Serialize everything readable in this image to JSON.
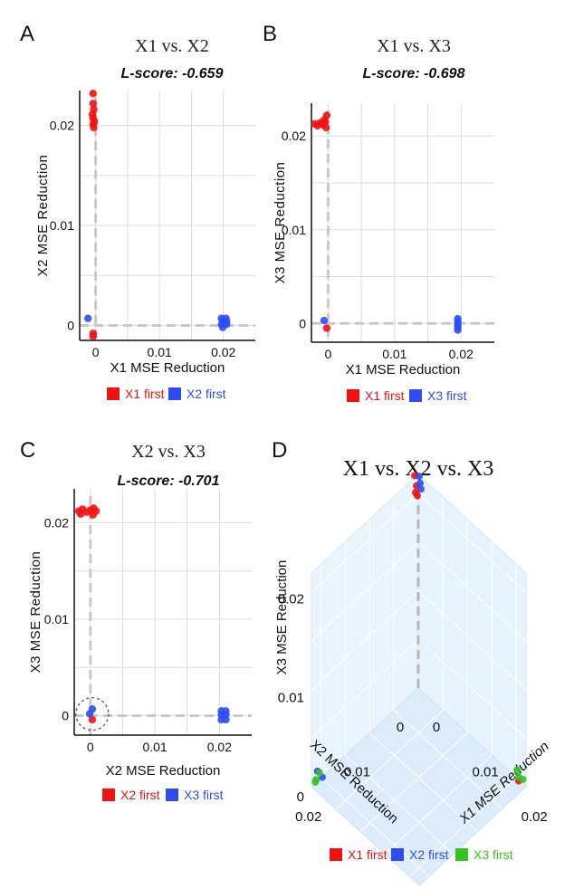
{
  "colors": {
    "red": "#f21111",
    "blue": "#2e4cf2",
    "green": "#34c41d",
    "grid": "#dcdcdc",
    "dash": "#c8c8c8"
  },
  "chart_data": [
    {
      "id": "A",
      "type": "scatter",
      "panel_label": "A",
      "title": "X1 vs. X2",
      "subtitle": "L-score: -0.659",
      "xlabel": "X1 MSE Reduction",
      "ylabel": "X2 MSE Reduction",
      "xlim": [
        -0.0025,
        0.025
      ],
      "ylim": [
        -0.0015,
        0.0235
      ],
      "xticks": [
        {
          "v": 0,
          "label": "0"
        },
        {
          "v": 0.01,
          "label": "0.01"
        },
        {
          "v": 0.02,
          "label": "0.02"
        }
      ],
      "yticks": [
        {
          "v": 0,
          "label": "0"
        },
        {
          "v": 0.01,
          "label": "0.01"
        },
        {
          "v": 0.02,
          "label": "0.02"
        }
      ],
      "legend": [
        {
          "label": "X1 first",
          "color": "red"
        },
        {
          "label": "X2 first",
          "color": "blue"
        }
      ],
      "series": [
        {
          "name": "X1 first",
          "color": "red",
          "points": [
            [
              -0.0004,
              0.0232
            ],
            [
              -0.0004,
              0.0222
            ],
            [
              -0.0003,
              0.0216
            ],
            [
              -0.0005,
              0.0211
            ],
            [
              -0.0004,
              0.0207
            ],
            [
              -0.0002,
              0.0204
            ],
            [
              -0.0004,
              0.0201
            ],
            [
              -0.0003,
              0.0198
            ],
            [
              -0.0004,
              -0.0008
            ],
            [
              -0.0004,
              -0.0011
            ]
          ]
        },
        {
          "name": "X2 first",
          "color": "blue",
          "points": [
            [
              -0.0012,
              0.0007
            ],
            [
              0.0197,
              0.0007
            ],
            [
              0.0199,
              0.0004
            ],
            [
              0.0197,
              0.0001
            ],
            [
              0.0199,
              -0.0002
            ],
            [
              0.0204,
              0.0007
            ],
            [
              0.0205,
              0.0004
            ],
            [
              0.0205,
              0.0001
            ]
          ]
        }
      ]
    },
    {
      "id": "B",
      "type": "scatter",
      "panel_label": "B",
      "title": "X1 vs. X3",
      "subtitle": "L-score: -0.698",
      "xlabel": "X1 MSE Reduction",
      "ylabel": "X3 MSE Reduction",
      "xlim": [
        -0.0025,
        0.025
      ],
      "ylim": [
        -0.002,
        0.0235
      ],
      "xticks": [
        {
          "v": 0,
          "label": "0"
        },
        {
          "v": 0.01,
          "label": "0.01"
        },
        {
          "v": 0.02,
          "label": "0.02"
        }
      ],
      "yticks": [
        {
          "v": 0,
          "label": "0"
        },
        {
          "v": 0.01,
          "label": "0.01"
        },
        {
          "v": 0.02,
          "label": "0.02"
        }
      ],
      "legend": [
        {
          "label": "X1 first",
          "color": "red"
        },
        {
          "label": "X3 first",
          "color": "blue"
        }
      ],
      "series": [
        {
          "name": "X1 first",
          "color": "red",
          "points": [
            [
              -0.002,
              0.0213
            ],
            [
              -0.0016,
              0.0211
            ],
            [
              -0.0012,
              0.0214
            ],
            [
              -0.0008,
              0.0212
            ],
            [
              -0.0004,
              0.0215
            ],
            [
              -0.0002,
              0.0222
            ],
            [
              -0.0003,
              0.0209
            ],
            [
              -0.0006,
              0.0217
            ],
            [
              -0.0002,
              -0.0005
            ]
          ]
        },
        {
          "name": "X3 first",
          "color": "blue",
          "points": [
            [
              -0.0006,
              0.0003
            ],
            [
              0.0195,
              0.0005
            ],
            [
              0.0195,
              0.0002
            ],
            [
              0.0195,
              -0.0001
            ],
            [
              0.0195,
              -0.0004
            ],
            [
              0.0195,
              -0.0007
            ]
          ]
        }
      ]
    },
    {
      "id": "C",
      "type": "scatter",
      "panel_label": "C",
      "title": "X2 vs. X3",
      "subtitle": "L-score: -0.701",
      "xlabel": "X2 MSE Reduction",
      "ylabel": "X3 MSE Reduction",
      "xlim": [
        -0.0025,
        0.025
      ],
      "ylim": [
        -0.002,
        0.0235
      ],
      "xticks": [
        {
          "v": 0,
          "label": "0"
        },
        {
          "v": 0.01,
          "label": "0.01"
        },
        {
          "v": 0.02,
          "label": "0.02"
        }
      ],
      "yticks": [
        {
          "v": 0,
          "label": "0"
        },
        {
          "v": 0.01,
          "label": "0.01"
        },
        {
          "v": 0.02,
          "label": "0.02"
        }
      ],
      "legend": [
        {
          "label": "X2 first",
          "color": "red"
        },
        {
          "label": "X3 first",
          "color": "blue"
        }
      ],
      "annotation": "dashed circle around origin cluster",
      "series": [
        {
          "name": "X2 first",
          "color": "red",
          "points": [
            [
              -0.0018,
              0.0212
            ],
            [
              -0.0012,
              0.0214
            ],
            [
              -0.0006,
              0.0211
            ],
            [
              0.0,
              0.0213
            ],
            [
              0.0005,
              0.0215
            ],
            [
              0.0009,
              0.0212
            ],
            [
              -0.0015,
              0.0209
            ],
            [
              0.0004,
              0.0208
            ],
            [
              0.0003,
              -0.0004
            ]
          ]
        },
        {
          "name": "X3 first",
          "color": "blue",
          "points": [
            [
              -0.0001,
              0.0002
            ],
            [
              0.0003,
              0.0007
            ],
            [
              0.0203,
              0.0005
            ],
            [
              0.0203,
              0.0001
            ],
            [
              0.0203,
              -0.0004
            ],
            [
              0.021,
              0.0005
            ],
            [
              0.021,
              0.0001
            ],
            [
              0.021,
              -0.0004
            ]
          ]
        }
      ]
    },
    {
      "id": "D",
      "type": "scatter3d",
      "panel_label": "D",
      "title": "X1 vs. X2 vs. X3",
      "xlabel": "X1 MSE Reduction",
      "ylabel": "X2 MSE Reduction",
      "zlabel": "X3 MSE Reduction",
      "xticks": [
        {
          "v": 0,
          "label": "0"
        },
        {
          "v": 0.01,
          "label": "0.01"
        },
        {
          "v": 0.02,
          "label": "0.02"
        }
      ],
      "yticks": [
        {
          "v": 0,
          "label": "0"
        },
        {
          "v": 0.01,
          "label": "0.01"
        },
        {
          "v": 0.02,
          "label": "0.02"
        }
      ],
      "zticks": [
        {
          "v": 0,
          "label": "0"
        },
        {
          "v": 0.01,
          "label": "0.01"
        },
        {
          "v": 0.02,
          "label": "0.02"
        }
      ],
      "legend": [
        {
          "label": "X1 first",
          "color": "red"
        },
        {
          "label": "X2 first",
          "color": "blue"
        },
        {
          "label": "X3 first",
          "color": "green"
        }
      ],
      "series": [
        {
          "name": "X1 first",
          "color": "red",
          "points": [
            [
              0,
              0,
              0.0215
            ],
            [
              0,
              0,
              0.0205
            ],
            [
              0,
              0,
              0.0211
            ],
            [
              0,
              0,
              0.02
            ],
            [
              0.0205,
              0,
              0
            ]
          ]
        },
        {
          "name": "X2 first",
          "color": "blue",
          "points": [
            [
              0,
              0,
              0.0218
            ],
            [
              0,
              0,
              0.021
            ],
            [
              0,
              0,
              0.0203
            ],
            [
              0,
              0.0205,
              0
            ],
            [
              0,
              0.02,
              0.0003
            ]
          ]
        },
        {
          "name": "X3 first",
          "color": "green",
          "points": [
            [
              0,
              0.0205,
              0.0004
            ],
            [
              0,
              0.02,
              0.0008
            ],
            [
              0,
              0.021,
              0.0002
            ],
            [
              0.0205,
              0,
              0.0004
            ],
            [
              0.02,
              0,
              0.0008
            ],
            [
              0.021,
              0,
              0.0002
            ]
          ]
        }
      ]
    }
  ]
}
